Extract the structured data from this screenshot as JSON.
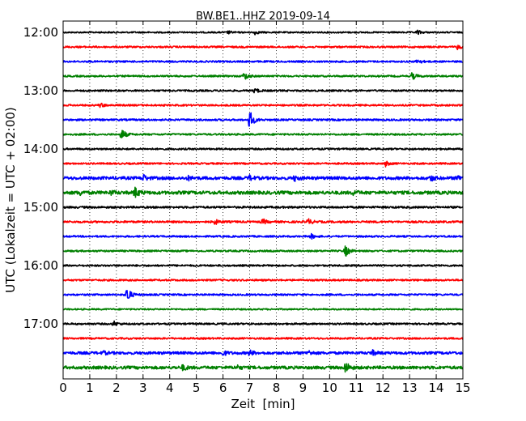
{
  "chart_data": {
    "type": "line",
    "title": "BW.BE1..HHZ 2019-09-14",
    "xlabel": "Zeit  [min]",
    "ylabel": "UTC (Lokalzeit = UTC + 02:00)",
    "xlim": [
      0,
      15
    ],
    "x_ticks": [
      "0",
      "1",
      "2",
      "3",
      "4",
      "5",
      "6",
      "7",
      "8",
      "9",
      "10",
      "11",
      "12",
      "13",
      "14",
      "15"
    ],
    "y_ticks": [
      "12:00",
      "13:00",
      "14:00",
      "15:00",
      "16:00",
      "17:00"
    ],
    "grid": "vertical dotted",
    "series_colors": [
      "#000000",
      "#ff0000",
      "#0000ff",
      "#008000"
    ],
    "traces": [
      {
        "start": "12:00",
        "color": "#000000",
        "noise": 0.6,
        "events": [
          [
            6.2,
            1.5
          ],
          [
            7.2,
            2.2
          ],
          [
            13.3,
            2.5
          ]
        ]
      },
      {
        "start": "12:15",
        "color": "#ff0000",
        "noise": 0.8,
        "events": [
          [
            14.8,
            2.5
          ]
        ]
      },
      {
        "start": "12:30",
        "color": "#0000ff",
        "noise": 0.8,
        "events": [
          [
            13.3,
            3.0
          ]
        ]
      },
      {
        "start": "12:45",
        "color": "#008000",
        "noise": 0.8,
        "events": [
          [
            6.8,
            5.0
          ],
          [
            13.1,
            4.5
          ]
        ]
      },
      {
        "start": "13:00",
        "color": "#000000",
        "noise": 0.8,
        "events": [
          [
            7.2,
            3.0
          ]
        ]
      },
      {
        "start": "13:15",
        "color": "#ff0000",
        "noise": 0.8,
        "events": [
          [
            1.4,
            2.5
          ]
        ]
      },
      {
        "start": "13:30",
        "color": "#0000ff",
        "noise": 0.9,
        "events": [
          [
            7.0,
            12.0
          ]
        ]
      },
      {
        "start": "13:45",
        "color": "#008000",
        "noise": 0.8,
        "events": [
          [
            2.2,
            7.0
          ]
        ]
      },
      {
        "start": "14:00",
        "color": "#000000",
        "noise": 0.8,
        "events": []
      },
      {
        "start": "14:15",
        "color": "#ff0000",
        "noise": 0.8,
        "events": [
          [
            12.1,
            3.0
          ]
        ]
      },
      {
        "start": "14:30",
        "color": "#0000ff",
        "noise": 1.8,
        "events": [
          [
            3.0,
            4.0
          ],
          [
            4.7,
            2.0
          ],
          [
            7.0,
            2.5
          ],
          [
            8.7,
            3.0
          ],
          [
            13.8,
            3.0
          ],
          [
            14.8,
            3.0
          ]
        ]
      },
      {
        "start": "14:45",
        "color": "#008000",
        "noise": 2.0,
        "events": [
          [
            0.6,
            3.0
          ],
          [
            1.8,
            2.0
          ],
          [
            2.7,
            6.0
          ],
          [
            10.9,
            2.5
          ]
        ]
      },
      {
        "start": "15:00",
        "color": "#000000",
        "noise": 1.0,
        "events": []
      },
      {
        "start": "15:15",
        "color": "#ff0000",
        "noise": 1.0,
        "events": [
          [
            5.7,
            3.0
          ],
          [
            7.5,
            3.0
          ],
          [
            9.2,
            3.5
          ]
        ]
      },
      {
        "start": "15:30",
        "color": "#0000ff",
        "noise": 0.8,
        "events": [
          [
            9.3,
            3.0
          ]
        ]
      },
      {
        "start": "15:45",
        "color": "#008000",
        "noise": 0.8,
        "events": [
          [
            10.6,
            7.0
          ]
        ]
      },
      {
        "start": "16:00",
        "color": "#000000",
        "noise": 0.8,
        "events": []
      },
      {
        "start": "16:15",
        "color": "#ff0000",
        "noise": 0.8,
        "events": []
      },
      {
        "start": "16:30",
        "color": "#0000ff",
        "noise": 0.8,
        "events": [
          [
            2.4,
            10.0
          ]
        ]
      },
      {
        "start": "16:45",
        "color": "#008000",
        "noise": 0.6,
        "events": []
      },
      {
        "start": "17:00",
        "color": "#000000",
        "noise": 0.8,
        "events": [
          [
            1.9,
            3.0
          ]
        ]
      },
      {
        "start": "17:15",
        "color": "#ff0000",
        "noise": 0.8,
        "events": []
      },
      {
        "start": "17:30",
        "color": "#0000ff",
        "noise": 1.5,
        "events": [
          [
            1.5,
            2.0
          ],
          [
            6.0,
            3.0
          ],
          [
            7.0,
            3.0
          ],
          [
            9.2,
            2.5
          ],
          [
            11.6,
            3.0
          ]
        ]
      },
      {
        "start": "17:45",
        "color": "#008000",
        "noise": 1.8,
        "events": [
          [
            4.5,
            3.0
          ],
          [
            6.5,
            2.5
          ],
          [
            10.6,
            7.0
          ]
        ]
      }
    ]
  }
}
